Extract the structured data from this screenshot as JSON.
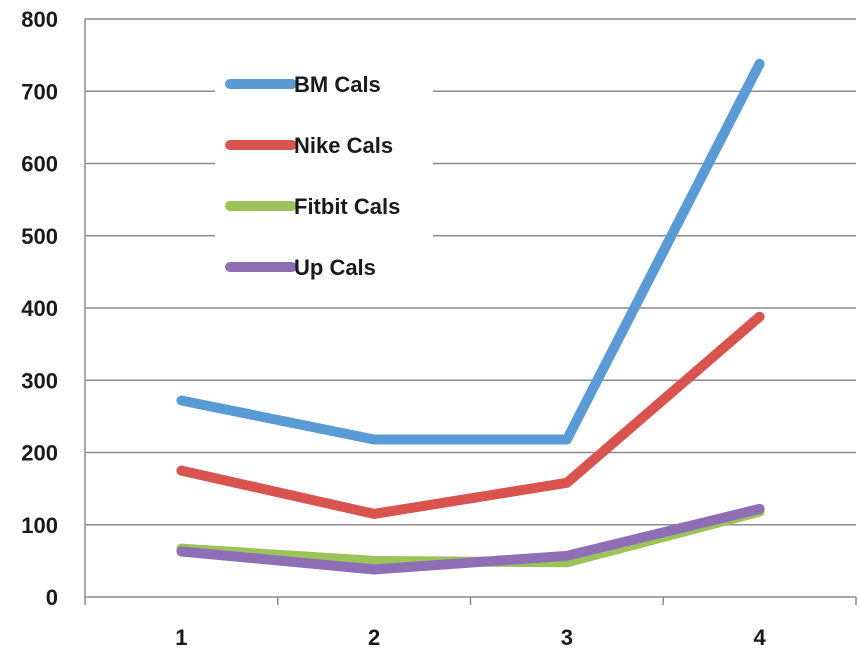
{
  "chart_data": {
    "type": "line",
    "title": "",
    "xlabel": "",
    "ylabel": "",
    "categories": [
      "1",
      "2",
      "3",
      "4"
    ],
    "ylim": [
      0,
      800
    ],
    "yticks": [
      0,
      100,
      200,
      300,
      400,
      500,
      600,
      700,
      800
    ],
    "grid": true,
    "legend_position": "top-left",
    "series": [
      {
        "name": "BM Cals",
        "color": "#5b9bd5",
        "values": [
          272,
          218,
          218,
          738
        ]
      },
      {
        "name": "Nike Cals",
        "color": "#d9534f",
        "values": [
          175,
          115,
          158,
          388
        ]
      },
      {
        "name": "Fitbit Cals",
        "color": "#9bc35a",
        "values": [
          67,
          50,
          48,
          118
        ]
      },
      {
        "name": "Up Cals",
        "color": "#8e6fb5",
        "values": [
          63,
          38,
          57,
          122
        ]
      }
    ]
  }
}
